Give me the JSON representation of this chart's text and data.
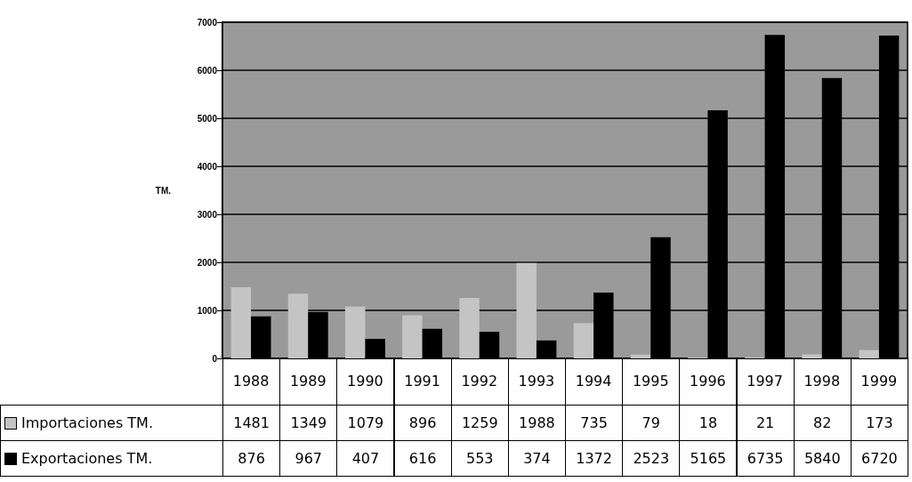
{
  "chart_data": {
    "type": "bar",
    "ylabel": "TM.",
    "categories": [
      "1988",
      "1989",
      "1990",
      "1991",
      "1992",
      "1993",
      "1994",
      "1995",
      "1996",
      "1997",
      "1998",
      "1999"
    ],
    "series": [
      {
        "name": "Importaciones TM.",
        "color": "#c4c4c4",
        "values": [
          1481,
          1349,
          1079,
          896,
          1259,
          1988,
          735,
          79,
          18,
          21,
          82,
          173
        ]
      },
      {
        "name": "Exportaciones TM.",
        "color": "#000000",
        "values": [
          876,
          967,
          407,
          616,
          553,
          374,
          1372,
          2523,
          5165,
          6735,
          5840,
          6720
        ]
      }
    ],
    "ylim": [
      0,
      7000
    ],
    "yticks": [
      0,
      1000,
      2000,
      3000,
      4000,
      5000,
      6000,
      7000
    ],
    "grid": "y",
    "legend": "bottom left",
    "data_labels": true
  }
}
